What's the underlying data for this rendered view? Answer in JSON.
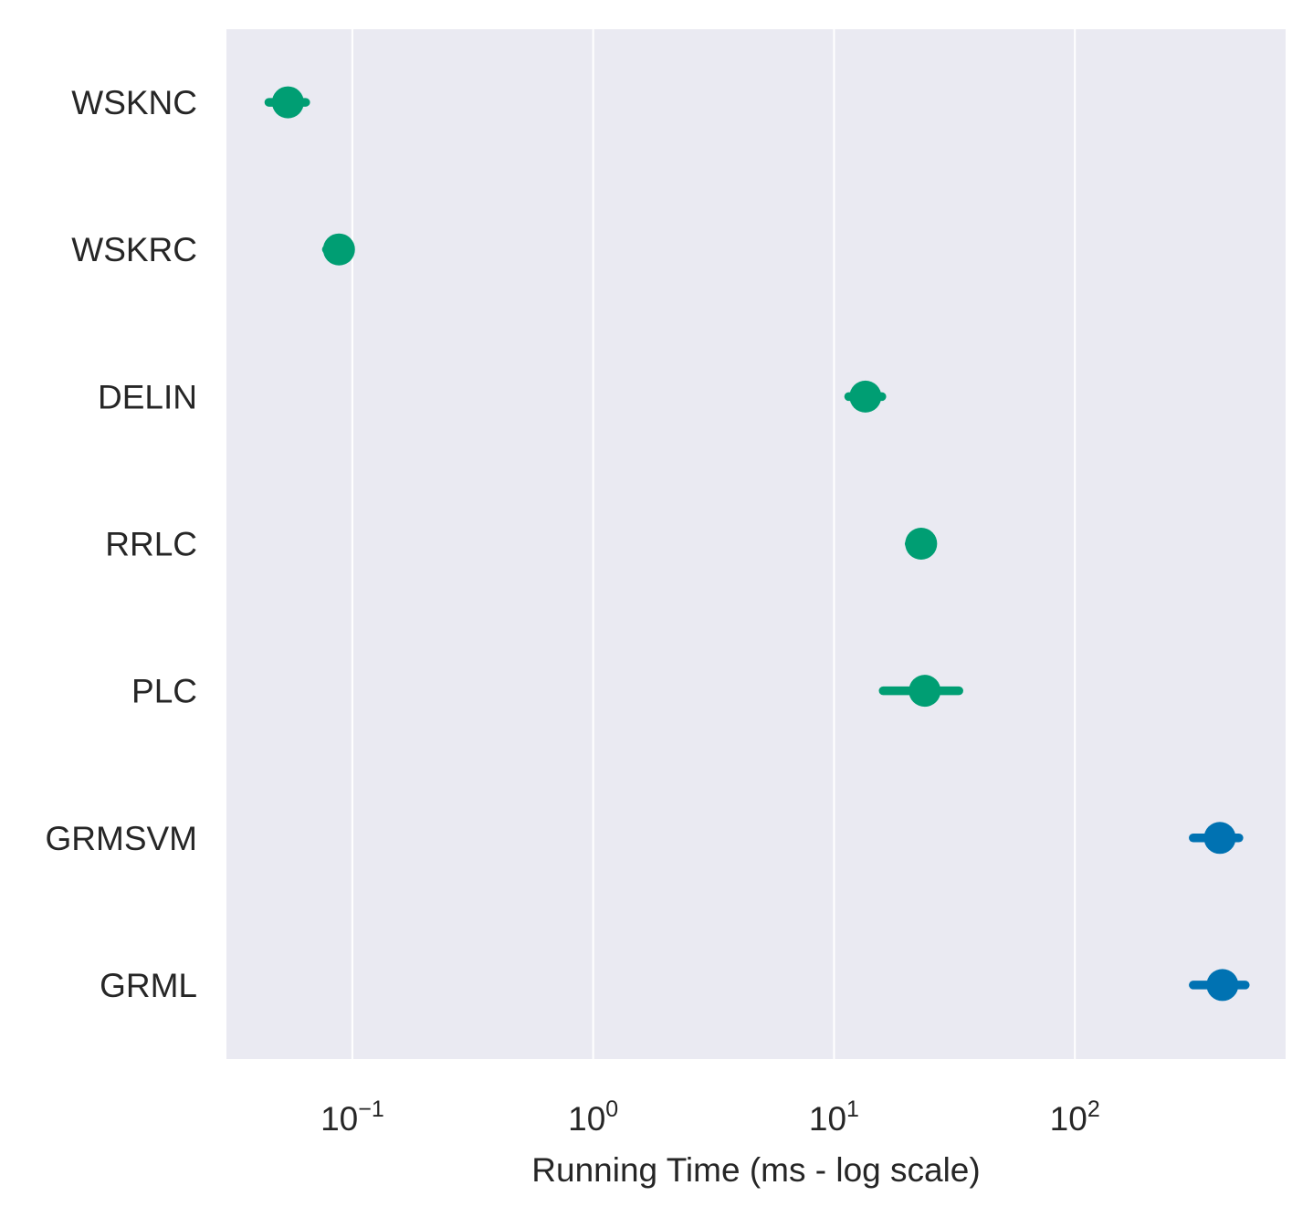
{
  "chart_data": {
    "type": "scatter",
    "title": "",
    "xlabel": "Running Time (ms - log scale)",
    "ylabel": "",
    "x_scale": "log",
    "xlim": [
      0.03,
      750
    ],
    "x_ticks": [
      {
        "base": "10",
        "exp": "−1",
        "value": 0.1
      },
      {
        "base": "10",
        "exp": "0",
        "value": 1
      },
      {
        "base": "10",
        "exp": "1",
        "value": 10
      },
      {
        "base": "10",
        "exp": "2",
        "value": 100
      }
    ],
    "categories": [
      "WSKNC",
      "WSKRC",
      "DELIN",
      "RRLC",
      "PLC",
      "GRMSVM",
      "GRML"
    ],
    "points": [
      {
        "label": "WSKNC",
        "value": 0.054,
        "err_low": 0.045,
        "err_high": 0.064,
        "color": "#009e73"
      },
      {
        "label": "WSKRC",
        "value": 0.088,
        "err_low": 0.078,
        "err_high": 0.098,
        "color": "#009e73"
      },
      {
        "label": "DELIN",
        "value": 13.5,
        "err_low": 11.5,
        "err_high": 15.8,
        "color": "#009e73"
      },
      {
        "label": "RRLC",
        "value": 23.0,
        "err_low": 20.5,
        "err_high": 25.0,
        "color": "#009e73"
      },
      {
        "label": "PLC",
        "value": 23.8,
        "err_low": 16.0,
        "err_high": 33.0,
        "color": "#009e73"
      },
      {
        "label": "GRMSVM",
        "value": 400,
        "err_low": 310,
        "err_high": 480,
        "color": "#0072b2"
      },
      {
        "label": "GRML",
        "value": 410,
        "err_low": 310,
        "err_high": 510,
        "color": "#0072b2"
      }
    ],
    "grid": true,
    "legend": "none",
    "background_color": "#eaeaf2",
    "grid_color": "#ffffff"
  }
}
